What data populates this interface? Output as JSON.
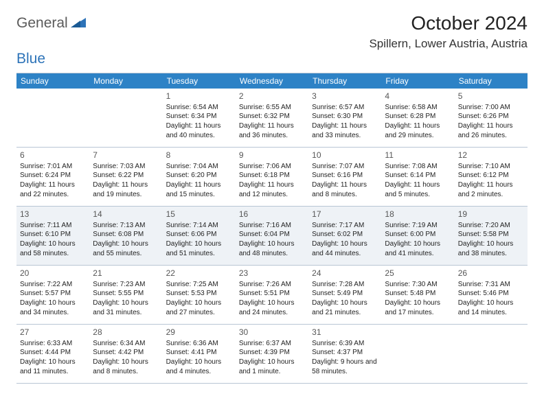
{
  "logo": {
    "word1": "General",
    "word2": "Blue"
  },
  "title": "October 2024",
  "location": "Spillern, Lower Austria, Austria",
  "colors": {
    "header_bg": "#2d82c6",
    "header_text": "#ffffff",
    "shaded_bg": "#eef2f6",
    "border": "#b8c5d4",
    "logo_gray": "#5a5a5a",
    "logo_blue": "#2d73b8"
  },
  "day_headers": [
    "Sunday",
    "Monday",
    "Tuesday",
    "Wednesday",
    "Thursday",
    "Friday",
    "Saturday"
  ],
  "weeks": [
    [
      {
        "num": "",
        "sunrise": "",
        "sunset": "",
        "daylight": ""
      },
      {
        "num": "",
        "sunrise": "",
        "sunset": "",
        "daylight": ""
      },
      {
        "num": "1",
        "sunrise": "Sunrise: 6:54 AM",
        "sunset": "Sunset: 6:34 PM",
        "daylight": "Daylight: 11 hours and 40 minutes."
      },
      {
        "num": "2",
        "sunrise": "Sunrise: 6:55 AM",
        "sunset": "Sunset: 6:32 PM",
        "daylight": "Daylight: 11 hours and 36 minutes."
      },
      {
        "num": "3",
        "sunrise": "Sunrise: 6:57 AM",
        "sunset": "Sunset: 6:30 PM",
        "daylight": "Daylight: 11 hours and 33 minutes."
      },
      {
        "num": "4",
        "sunrise": "Sunrise: 6:58 AM",
        "sunset": "Sunset: 6:28 PM",
        "daylight": "Daylight: 11 hours and 29 minutes."
      },
      {
        "num": "5",
        "sunrise": "Sunrise: 7:00 AM",
        "sunset": "Sunset: 6:26 PM",
        "daylight": "Daylight: 11 hours and 26 minutes."
      }
    ],
    [
      {
        "num": "6",
        "sunrise": "Sunrise: 7:01 AM",
        "sunset": "Sunset: 6:24 PM",
        "daylight": "Daylight: 11 hours and 22 minutes."
      },
      {
        "num": "7",
        "sunrise": "Sunrise: 7:03 AM",
        "sunset": "Sunset: 6:22 PM",
        "daylight": "Daylight: 11 hours and 19 minutes."
      },
      {
        "num": "8",
        "sunrise": "Sunrise: 7:04 AM",
        "sunset": "Sunset: 6:20 PM",
        "daylight": "Daylight: 11 hours and 15 minutes."
      },
      {
        "num": "9",
        "sunrise": "Sunrise: 7:06 AM",
        "sunset": "Sunset: 6:18 PM",
        "daylight": "Daylight: 11 hours and 12 minutes."
      },
      {
        "num": "10",
        "sunrise": "Sunrise: 7:07 AM",
        "sunset": "Sunset: 6:16 PM",
        "daylight": "Daylight: 11 hours and 8 minutes."
      },
      {
        "num": "11",
        "sunrise": "Sunrise: 7:08 AM",
        "sunset": "Sunset: 6:14 PM",
        "daylight": "Daylight: 11 hours and 5 minutes."
      },
      {
        "num": "12",
        "sunrise": "Sunrise: 7:10 AM",
        "sunset": "Sunset: 6:12 PM",
        "daylight": "Daylight: 11 hours and 2 minutes."
      }
    ],
    [
      {
        "num": "13",
        "sunrise": "Sunrise: 7:11 AM",
        "sunset": "Sunset: 6:10 PM",
        "daylight": "Daylight: 10 hours and 58 minutes."
      },
      {
        "num": "14",
        "sunrise": "Sunrise: 7:13 AM",
        "sunset": "Sunset: 6:08 PM",
        "daylight": "Daylight: 10 hours and 55 minutes."
      },
      {
        "num": "15",
        "sunrise": "Sunrise: 7:14 AM",
        "sunset": "Sunset: 6:06 PM",
        "daylight": "Daylight: 10 hours and 51 minutes."
      },
      {
        "num": "16",
        "sunrise": "Sunrise: 7:16 AM",
        "sunset": "Sunset: 6:04 PM",
        "daylight": "Daylight: 10 hours and 48 minutes."
      },
      {
        "num": "17",
        "sunrise": "Sunrise: 7:17 AM",
        "sunset": "Sunset: 6:02 PM",
        "daylight": "Daylight: 10 hours and 44 minutes."
      },
      {
        "num": "18",
        "sunrise": "Sunrise: 7:19 AM",
        "sunset": "Sunset: 6:00 PM",
        "daylight": "Daylight: 10 hours and 41 minutes."
      },
      {
        "num": "19",
        "sunrise": "Sunrise: 7:20 AM",
        "sunset": "Sunset: 5:58 PM",
        "daylight": "Daylight: 10 hours and 38 minutes."
      }
    ],
    [
      {
        "num": "20",
        "sunrise": "Sunrise: 7:22 AM",
        "sunset": "Sunset: 5:57 PM",
        "daylight": "Daylight: 10 hours and 34 minutes."
      },
      {
        "num": "21",
        "sunrise": "Sunrise: 7:23 AM",
        "sunset": "Sunset: 5:55 PM",
        "daylight": "Daylight: 10 hours and 31 minutes."
      },
      {
        "num": "22",
        "sunrise": "Sunrise: 7:25 AM",
        "sunset": "Sunset: 5:53 PM",
        "daylight": "Daylight: 10 hours and 27 minutes."
      },
      {
        "num": "23",
        "sunrise": "Sunrise: 7:26 AM",
        "sunset": "Sunset: 5:51 PM",
        "daylight": "Daylight: 10 hours and 24 minutes."
      },
      {
        "num": "24",
        "sunrise": "Sunrise: 7:28 AM",
        "sunset": "Sunset: 5:49 PM",
        "daylight": "Daylight: 10 hours and 21 minutes."
      },
      {
        "num": "25",
        "sunrise": "Sunrise: 7:30 AM",
        "sunset": "Sunset: 5:48 PM",
        "daylight": "Daylight: 10 hours and 17 minutes."
      },
      {
        "num": "26",
        "sunrise": "Sunrise: 7:31 AM",
        "sunset": "Sunset: 5:46 PM",
        "daylight": "Daylight: 10 hours and 14 minutes."
      }
    ],
    [
      {
        "num": "27",
        "sunrise": "Sunrise: 6:33 AM",
        "sunset": "Sunset: 4:44 PM",
        "daylight": "Daylight: 10 hours and 11 minutes."
      },
      {
        "num": "28",
        "sunrise": "Sunrise: 6:34 AM",
        "sunset": "Sunset: 4:42 PM",
        "daylight": "Daylight: 10 hours and 8 minutes."
      },
      {
        "num": "29",
        "sunrise": "Sunrise: 6:36 AM",
        "sunset": "Sunset: 4:41 PM",
        "daylight": "Daylight: 10 hours and 4 minutes."
      },
      {
        "num": "30",
        "sunrise": "Sunrise: 6:37 AM",
        "sunset": "Sunset: 4:39 PM",
        "daylight": "Daylight: 10 hours and 1 minute."
      },
      {
        "num": "31",
        "sunrise": "Sunrise: 6:39 AM",
        "sunset": "Sunset: 4:37 PM",
        "daylight": "Daylight: 9 hours and 58 minutes."
      },
      {
        "num": "",
        "sunrise": "",
        "sunset": "",
        "daylight": ""
      },
      {
        "num": "",
        "sunrise": "",
        "sunset": "",
        "daylight": ""
      }
    ]
  ],
  "shaded_weeks": [
    2
  ]
}
